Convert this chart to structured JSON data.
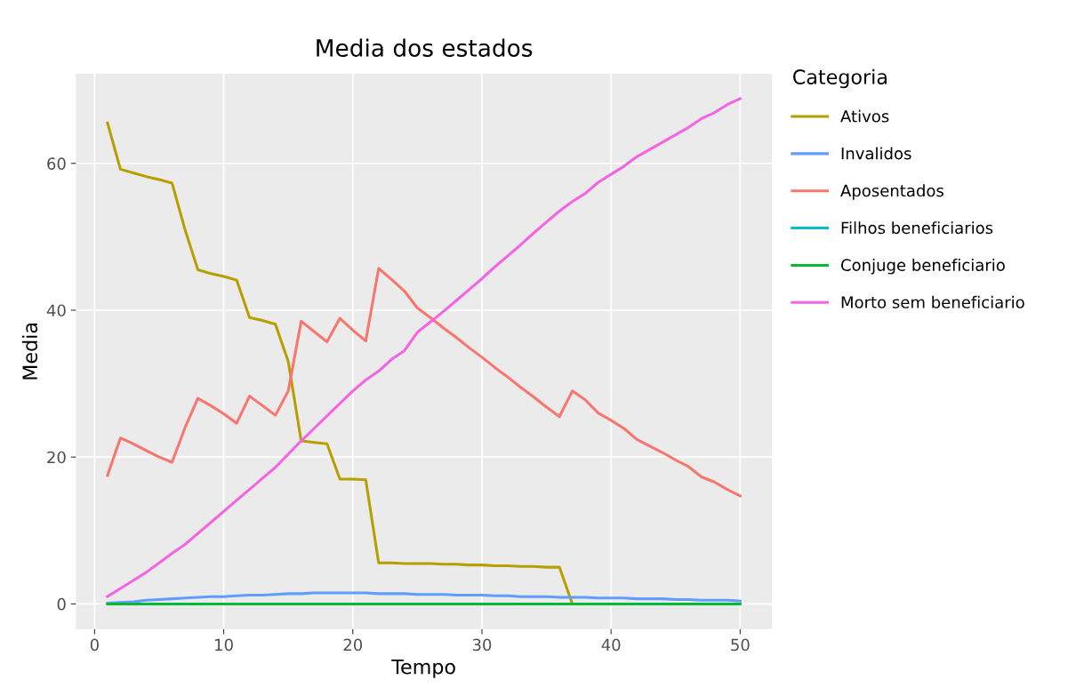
{
  "chart_data": {
    "type": "line",
    "title": "Media dos estados",
    "xlabel": "Tempo",
    "ylabel": "Media",
    "legend_title": "Categoria",
    "x": [
      1,
      2,
      3,
      4,
      5,
      6,
      7,
      8,
      9,
      10,
      11,
      12,
      13,
      14,
      15,
      16,
      17,
      18,
      19,
      20,
      21,
      22,
      23,
      24,
      25,
      26,
      27,
      28,
      29,
      30,
      31,
      32,
      33,
      34,
      35,
      36,
      37,
      38,
      39,
      40,
      41,
      42,
      43,
      44,
      45,
      46,
      47,
      48,
      49,
      50
    ],
    "series": [
      {
        "name": "Ativos",
        "color": "#b79f00",
        "values": [
          65.5,
          59.2,
          58.7,
          58.2,
          57.8,
          57.3,
          51.0,
          45.5,
          45.0,
          44.6,
          44.1,
          39.0,
          38.6,
          38.1,
          33.0,
          22.2,
          22.0,
          21.8,
          17.0,
          17.0,
          16.9,
          5.6,
          5.6,
          5.5,
          5.5,
          5.5,
          5.4,
          5.4,
          5.3,
          5.3,
          5.2,
          5.2,
          5.1,
          5.1,
          5.0,
          5.0,
          0,
          null,
          null,
          null,
          null,
          null,
          null,
          null,
          null,
          null,
          null,
          null,
          null,
          null
        ]
      },
      {
        "name": "Invalidos",
        "color": "#619cff",
        "values": [
          0.1,
          0.2,
          0.3,
          0.5,
          0.6,
          0.7,
          0.8,
          0.9,
          1.0,
          1.0,
          1.1,
          1.2,
          1.2,
          1.3,
          1.4,
          1.4,
          1.5,
          1.5,
          1.5,
          1.5,
          1.5,
          1.4,
          1.4,
          1.4,
          1.3,
          1.3,
          1.3,
          1.2,
          1.2,
          1.2,
          1.1,
          1.1,
          1.0,
          1.0,
          1.0,
          0.9,
          0.9,
          0.9,
          0.8,
          0.8,
          0.8,
          0.7,
          0.7,
          0.7,
          0.6,
          0.6,
          0.5,
          0.5,
          0.5,
          0.4
        ]
      },
      {
        "name": "Aposentados",
        "color": "#f8766d",
        "values": [
          17.5,
          22.6,
          21.8,
          20.9,
          20.0,
          19.3,
          24.0,
          28.0,
          27.0,
          25.9,
          24.6,
          28.3,
          27.0,
          25.7,
          29.0,
          38.5,
          37.1,
          35.7,
          38.9,
          37.3,
          35.8,
          45.7,
          44.2,
          42.6,
          40.3,
          39.0,
          37.6,
          36.3,
          34.9,
          33.6,
          32.2,
          30.9,
          29.5,
          28.2,
          26.8,
          25.5,
          29.0,
          27.8,
          26.0,
          25.0,
          23.9,
          22.4,
          21.5,
          20.6,
          19.6,
          18.7,
          17.3,
          16.6,
          15.6,
          14.7
        ]
      },
      {
        "name": "Filhos beneficiarios",
        "color": "#00bfc4",
        "values": [
          null,
          null,
          null,
          null,
          null,
          null,
          null,
          null,
          null,
          null,
          null,
          null,
          null,
          null,
          null,
          null,
          null,
          null,
          null,
          null,
          null,
          null,
          null,
          null,
          null,
          null,
          null,
          null,
          null,
          null,
          null,
          null,
          null,
          null,
          null,
          null,
          null,
          null,
          null,
          null,
          null,
          null,
          null,
          null,
          null,
          null,
          null,
          null,
          null,
          null
        ]
      },
      {
        "name": "Conjuge beneficiario",
        "color": "#00ba38",
        "values": [
          0,
          0,
          0,
          0,
          0,
          0,
          0,
          0,
          0,
          0,
          0,
          0,
          0,
          0,
          0,
          0,
          0,
          0,
          0,
          0,
          0,
          0,
          0,
          0,
          0,
          0,
          0,
          0,
          0,
          0,
          0,
          0,
          0,
          0,
          0,
          0,
          0,
          0,
          0,
          0,
          0,
          0,
          0,
          0,
          0,
          0,
          0,
          0,
          0,
          0
        ]
      },
      {
        "name": "Morto sem beneficiario",
        "color": "#f564e3",
        "values": [
          1.0,
          2.1,
          3.2,
          4.3,
          5.6,
          6.9,
          8.1,
          9.6,
          11.1,
          12.6,
          14.1,
          15.6,
          17.1,
          18.6,
          20.4,
          22.2,
          23.9,
          25.6,
          27.3,
          29.0,
          30.5,
          31.7,
          33.3,
          34.5,
          37.0,
          38.4,
          39.8,
          41.3,
          42.8,
          44.3,
          45.9,
          47.4,
          48.9,
          50.5,
          52.0,
          53.5,
          54.8,
          55.9,
          57.4,
          58.5,
          59.6,
          60.9,
          61.9,
          62.9,
          63.9,
          64.9,
          66.1,
          66.9,
          68.0,
          68.8
        ]
      }
    ],
    "xlim": [
      -1.45,
      52.45
    ],
    "ylim": [
      -3.44,
      72.2
    ],
    "xticks": [
      0,
      10,
      20,
      30,
      40,
      50
    ],
    "yticks": [
      0,
      20,
      40,
      60
    ],
    "grid": true,
    "legend": "right",
    "line_style": "solid",
    "marker": "none"
  }
}
